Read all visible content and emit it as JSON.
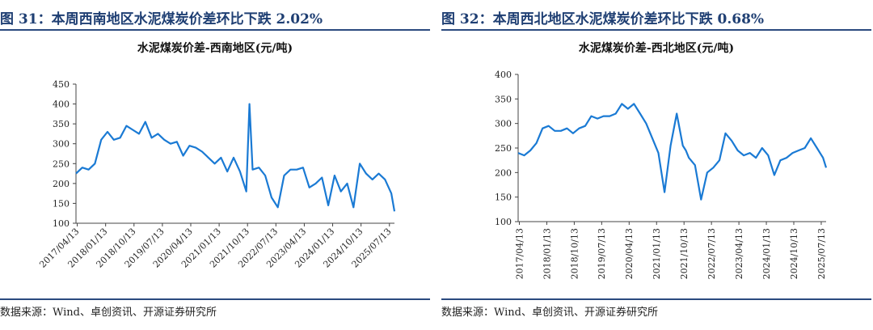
{
  "colors": {
    "line": "#1a7ad4",
    "title": "#1f3f73",
    "rule": "#2b4a7f"
  },
  "source_text": "数据来源：Wind、卓创资讯、开源证券研究所",
  "panels": [
    {
      "figure_title": "图 31：本周西南地区水泥煤炭价差环比下跌 2.02%",
      "chart_title": "水泥煤炭价差-西南地区(元/吨)"
    },
    {
      "figure_title": "图 32：本周西北地区水泥煤炭价差环比下跌 0.68%",
      "chart_title": "水泥煤炭价差-西北地区(元/吨)"
    }
  ],
  "chart_data": [
    {
      "type": "line",
      "title": "水泥煤炭价差-西南地区(元/吨)",
      "ylim": [
        100,
        450
      ],
      "yticks": [
        100,
        150,
        200,
        250,
        300,
        350,
        400,
        450
      ],
      "x_tick_labels": [
        "2017/04/13",
        "2018/01/13",
        "2018/10/13",
        "2019/07/13",
        "2020/04/13",
        "2021/01/13",
        "2021/10/13",
        "2022/07/13",
        "2023/04/13",
        "2024/01/13",
        "2024/10/13",
        "2025/07/13"
      ],
      "x": [
        "2017-04",
        "2017-06",
        "2017-08",
        "2017-10",
        "2017-12",
        "2018-02",
        "2018-04",
        "2018-06",
        "2018-08",
        "2018-10",
        "2018-12",
        "2019-02",
        "2019-04",
        "2019-06",
        "2019-08",
        "2019-10",
        "2019-12",
        "2020-02",
        "2020-04",
        "2020-06",
        "2020-08",
        "2020-10",
        "2020-12",
        "2021-02",
        "2021-04",
        "2021-06",
        "2021-08",
        "2021-10",
        "2021-11",
        "2021-12",
        "2022-02",
        "2022-04",
        "2022-06",
        "2022-08",
        "2022-10",
        "2022-12",
        "2023-02",
        "2023-04",
        "2023-06",
        "2023-08",
        "2023-10",
        "2023-12",
        "2024-02",
        "2024-04",
        "2024-06",
        "2024-08",
        "2024-10",
        "2024-12",
        "2025-02",
        "2025-04",
        "2025-06",
        "2025-08",
        "2025-09"
      ],
      "y": [
        225,
        240,
        235,
        250,
        310,
        330,
        310,
        315,
        345,
        335,
        325,
        355,
        315,
        325,
        310,
        300,
        305,
        270,
        295,
        290,
        280,
        265,
        250,
        265,
        230,
        265,
        230,
        180,
        400,
        235,
        240,
        220,
        165,
        140,
        220,
        235,
        235,
        240,
        190,
        200,
        215,
        145,
        220,
        180,
        200,
        140,
        250,
        225,
        210,
        225,
        210,
        175,
        130
      ]
    },
    {
      "type": "line",
      "title": "水泥煤炭价差-西北地区(元/吨)",
      "ylim": [
        100,
        400
      ],
      "yticks": [
        100,
        150,
        200,
        250,
        300,
        350,
        400
      ],
      "x_tick_labels": [
        "2017/04/13",
        "2018/01/13",
        "2018/10/13",
        "2019/07/13",
        "2020/04/13",
        "2021/01/13",
        "2021/10/13",
        "2022/07/13",
        "2023/04/13",
        "2024/01/13",
        "2024/10/13",
        "2025/07/13"
      ],
      "x": [
        "2017-04",
        "2017-06",
        "2017-08",
        "2017-10",
        "2017-12",
        "2018-02",
        "2018-04",
        "2018-06",
        "2018-08",
        "2018-10",
        "2018-12",
        "2019-02",
        "2019-04",
        "2019-06",
        "2019-08",
        "2019-10",
        "2019-12",
        "2020-02",
        "2020-04",
        "2020-06",
        "2020-08",
        "2020-10",
        "2020-12",
        "2021-02",
        "2021-04",
        "2021-06",
        "2021-08",
        "2021-10",
        "2021-11",
        "2021-12",
        "2022-02",
        "2022-04",
        "2022-06",
        "2022-08",
        "2022-10",
        "2022-12",
        "2023-02",
        "2023-04",
        "2023-06",
        "2023-08",
        "2023-10",
        "2023-12",
        "2024-02",
        "2024-04",
        "2024-06",
        "2024-08",
        "2024-10",
        "2024-12",
        "2025-02",
        "2025-04",
        "2025-06",
        "2025-08",
        "2025-09"
      ],
      "y": [
        240,
        235,
        245,
        260,
        290,
        295,
        285,
        285,
        290,
        280,
        290,
        295,
        315,
        310,
        315,
        315,
        320,
        340,
        330,
        340,
        320,
        300,
        270,
        240,
        160,
        255,
        320,
        255,
        245,
        230,
        215,
        145,
        200,
        210,
        225,
        280,
        265,
        245,
        235,
        240,
        230,
        250,
        235,
        195,
        225,
        230,
        240,
        245,
        250,
        270,
        250,
        230,
        210
      ]
    }
  ]
}
